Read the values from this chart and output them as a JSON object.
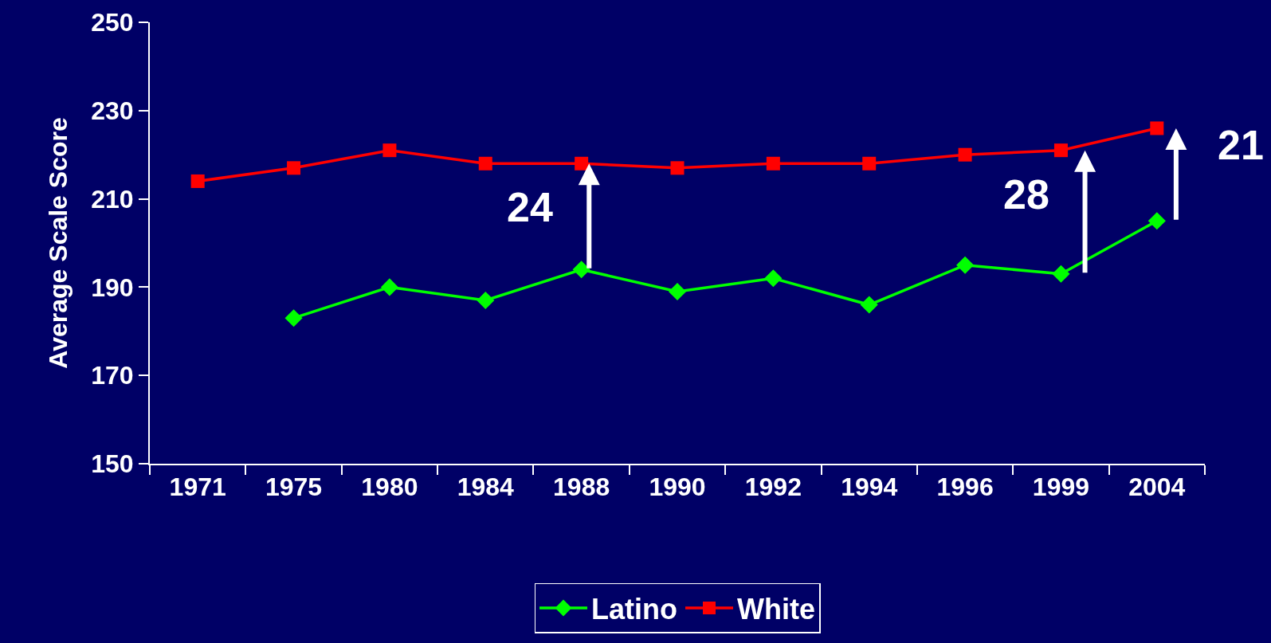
{
  "chart_data": {
    "type": "line",
    "ylabel": "Average Scale Score",
    "categories": [
      "1971",
      "1975",
      "1980",
      "1984",
      "1988",
      "1990",
      "1992",
      "1994",
      "1996",
      "1999",
      "2004"
    ],
    "series": [
      {
        "name": "Latino",
        "color": "#00ff00",
        "marker": "diamond",
        "values": [
          null,
          183,
          190,
          187,
          194,
          189,
          192,
          186,
          195,
          193,
          205
        ]
      },
      {
        "name": "White",
        "color": "#ff0000",
        "marker": "square",
        "values": [
          214,
          217,
          221,
          218,
          218,
          217,
          218,
          218,
          220,
          221,
          226
        ]
      }
    ],
    "ylim": [
      150,
      250
    ],
    "yticks": [
      150,
      170,
      190,
      210,
      230,
      250
    ],
    "grid": false,
    "legend": "bottom",
    "line_style": "solid",
    "annotations": [
      {
        "text": "24",
        "x": "1988",
        "y": 218
      },
      {
        "text": "28",
        "x": "1999",
        "y": 221
      },
      {
        "text": "21",
        "x": "2004",
        "y": 226
      }
    ]
  }
}
